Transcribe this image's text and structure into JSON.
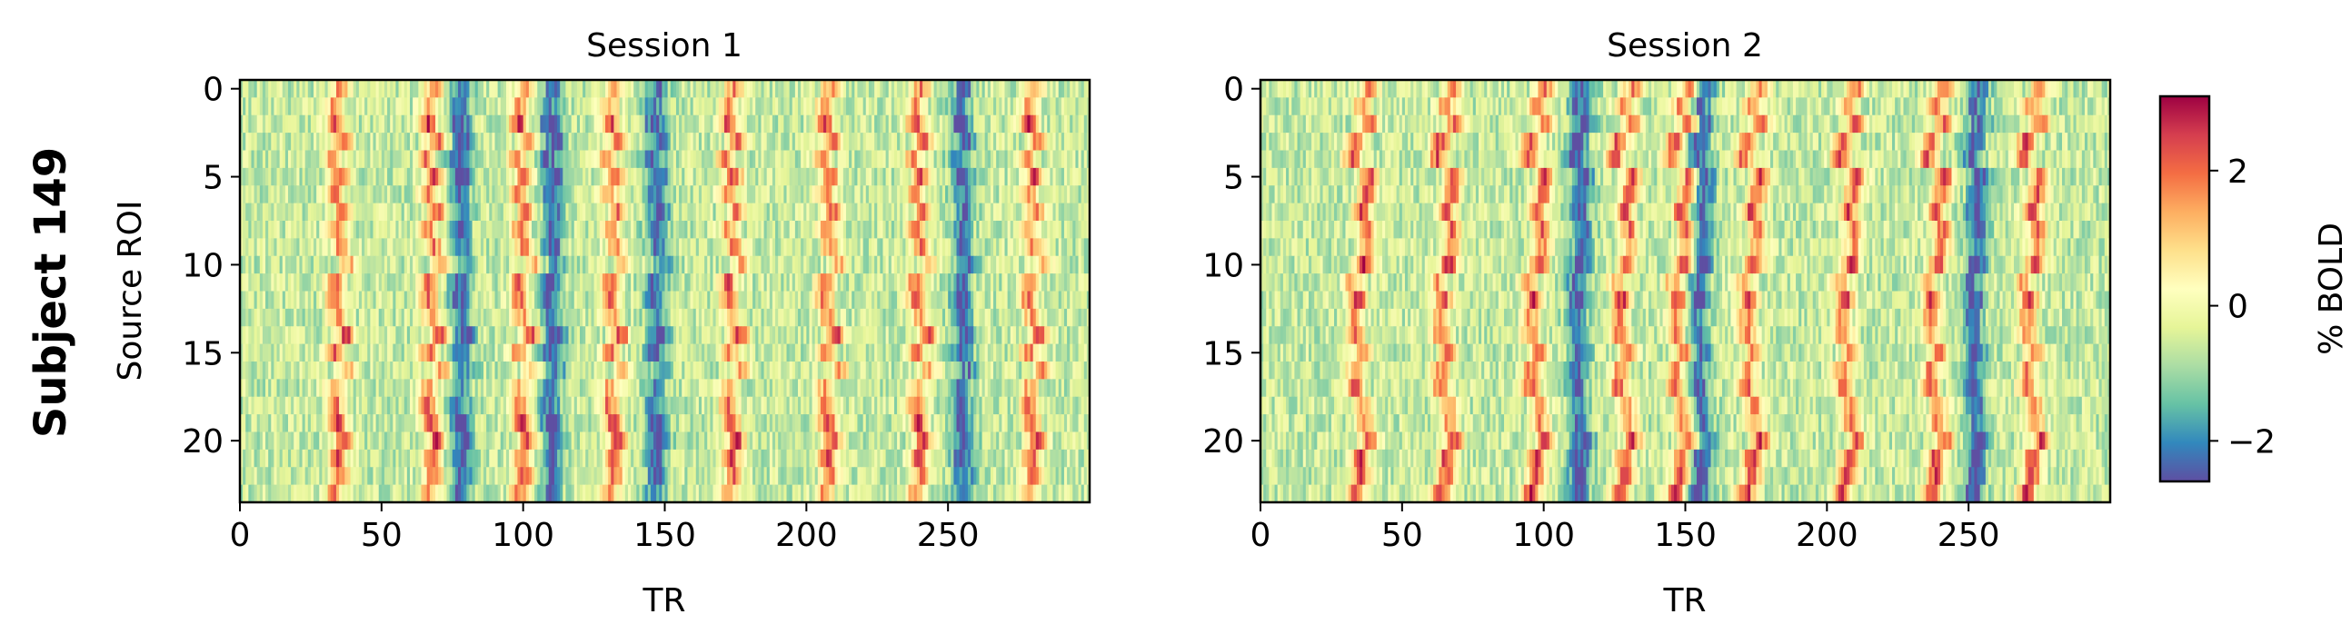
{
  "figure_label": "Subject 149",
  "colorbar": {
    "label": "% BOLD",
    "ticks": [
      -2,
      0,
      2
    ],
    "tick_labels": [
      "−2",
      "0",
      "2"
    ],
    "vmin": -2.6,
    "vmax": 3.1,
    "colormap": "Spectral_r",
    "colormap_stops": [
      "#5e4fa2",
      "#3288bd",
      "#66c2a5",
      "#abdda4",
      "#e6f598",
      "#ffffbf",
      "#fee08b",
      "#fdae61",
      "#f46d43",
      "#d53e4f",
      "#9e0142"
    ]
  },
  "chart_data": [
    {
      "type": "heatmap",
      "title": "Session 1",
      "xlabel": "TR",
      "ylabel": "Source ROI",
      "xlim": [
        0,
        300
      ],
      "ylim": [
        23.5,
        -0.5
      ],
      "rows": 24,
      "cols": 300,
      "xticks": [
        0,
        50,
        100,
        150,
        200,
        250
      ],
      "yticks": [
        0,
        5,
        10,
        15,
        20
      ],
      "value_range": [
        -2.6,
        3.1
      ],
      "peak_TRs": [
        35,
        68,
        100,
        132,
        174,
        208,
        240,
        280
      ],
      "trough_TRs": [
        78,
        110,
        147,
        255
      ]
    },
    {
      "type": "heatmap",
      "title": "Session 2",
      "xlabel": "TR",
      "ylabel": "",
      "xlim": [
        0,
        300
      ],
      "ylim": [
        23.5,
        -0.5
      ],
      "rows": 24,
      "cols": 300,
      "xticks": [
        0,
        50,
        100,
        150,
        200,
        250
      ],
      "yticks": [
        0,
        5,
        10,
        15,
        20
      ],
      "value_range": [
        -2.6,
        3.1
      ],
      "peak_TRs": [
        35,
        65,
        97,
        128,
        148,
        173,
        207,
        238,
        272
      ],
      "trough_TRs": [
        112,
        155,
        252
      ]
    }
  ]
}
